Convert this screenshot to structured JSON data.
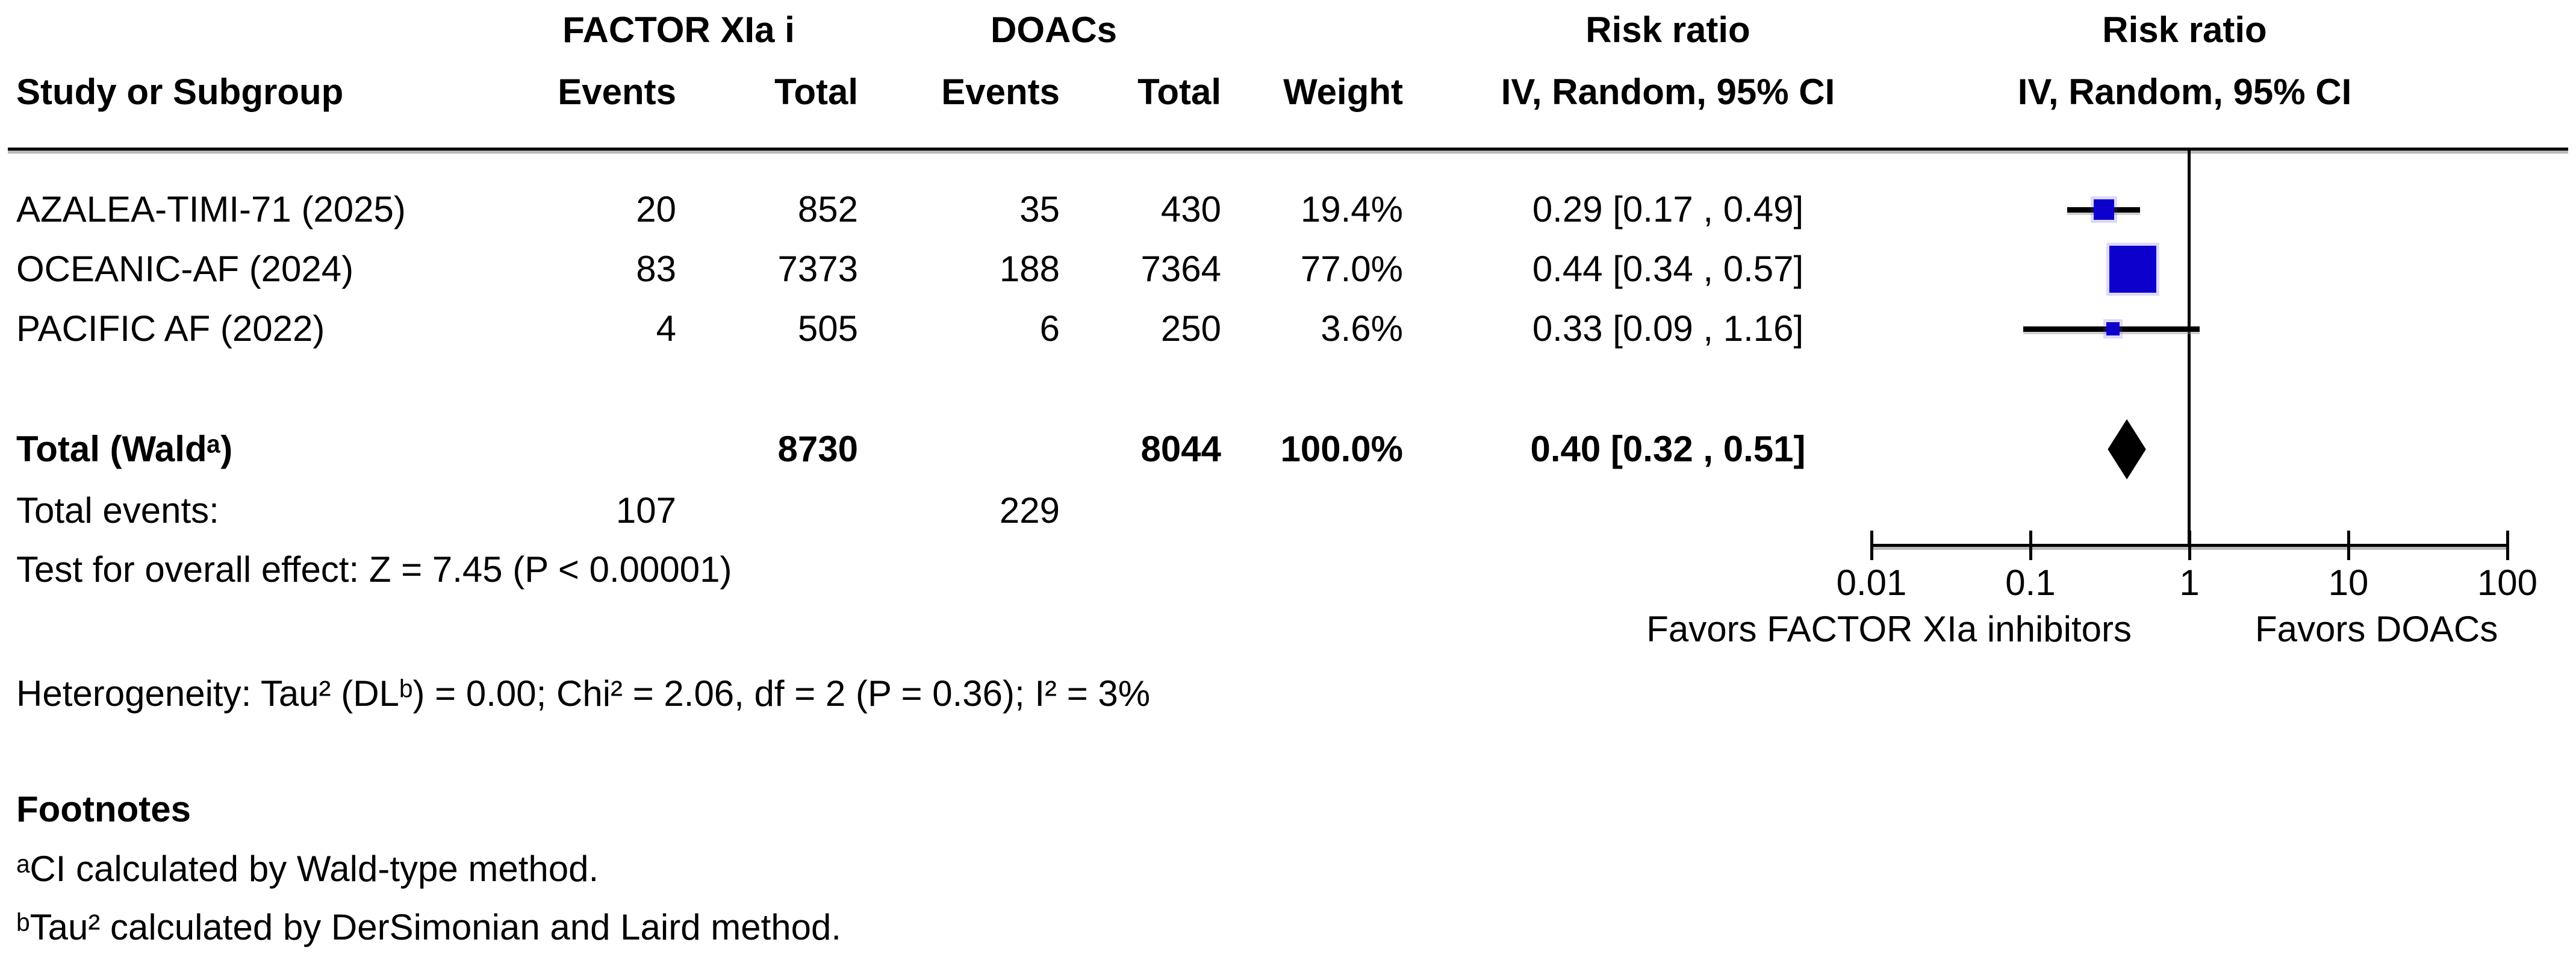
{
  "table": {
    "group_headers": {
      "experimental": "FACTOR XIa i",
      "control": "DOACs",
      "risk_ratio_text_col": "Risk ratio",
      "risk_ratio_plot_col": "Risk ratio"
    },
    "column_headers": {
      "study": "Study or Subgroup",
      "exp_events": "Events",
      "exp_total": "Total",
      "ctl_events": "Events",
      "ctl_total": "Total",
      "weight": "Weight",
      "ci_text_col": "IV, Random, 95% CI",
      "ci_plot_col": "IV, Random, 95% CI"
    },
    "rows": [
      {
        "study": "AZALEA-TIMI-71 (2025)",
        "exp_events": "20",
        "exp_total": "852",
        "ctl_events": "35",
        "ctl_total": "430",
        "weight": "19.4%",
        "estimate": "0.29 [0.17 , 0.49]"
      },
      {
        "study": "OCEANIC-AF (2024)",
        "exp_events": "83",
        "exp_total": "7373",
        "ctl_events": "188",
        "ctl_total": "7364",
        "weight": "77.0%",
        "estimate": "0.44 [0.34 , 0.57]"
      },
      {
        "study": "PACIFIC AF (2022)",
        "exp_events": "4",
        "exp_total": "505",
        "ctl_events": "6",
        "ctl_total": "250",
        "weight": "3.6%",
        "estimate": "0.33 [0.09 , 1.16]"
      }
    ],
    "total_row": {
      "label": "Total (Waldᵃ)",
      "exp_total": "8730",
      "ctl_total": "8044",
      "weight": "100.0%",
      "estimate": "0.40 [0.32 , 0.51]"
    },
    "total_events_row": {
      "label": "Total events:",
      "exp_events": "107",
      "ctl_events": "229"
    },
    "overall_effect": "Test for overall effect: Z = 7.45 (P < 0.00001)",
    "heterogeneity": "Heterogeneity: Tau² (DLᵇ) = 0.00; Chi² = 2.06, df = 2 (P = 0.36); I² = 3%"
  },
  "footnotes": {
    "header": "Footnotes",
    "a": "ᵃCI calculated by Wald-type method.",
    "b": "ᵇTau² calculated by DerSimonian and Laird method."
  },
  "plot": {
    "favors_left": "Favors FACTOR XIa inhibitors",
    "favors_right": "Favors DOACs",
    "marker_color": "#0d00cc",
    "diamond_color": "#000000"
  },
  "chart_data": {
    "type": "scatter",
    "subtype": "forest-plot",
    "title": "Risk ratio, IV, Random, 95% CI — FACTOR XIa inhibitors vs DOACs",
    "x_scale": "log10",
    "axis": {
      "ticks": [
        0.01,
        0.1,
        1,
        10,
        100
      ],
      "tick_labels": [
        "0.01",
        "0.1",
        "1",
        "10",
        "100"
      ],
      "xlim": [
        0.01,
        100
      ],
      "null_line": 1
    },
    "studies": [
      {
        "name": "AZALEA-TIMI-71 (2025)",
        "rr": 0.29,
        "ci_low": 0.17,
        "ci_high": 0.49,
        "weight_pct": 19.4,
        "marker_px": 34
      },
      {
        "name": "OCEANIC-AF (2024)",
        "rr": 0.44,
        "ci_low": 0.34,
        "ci_high": 0.57,
        "weight_pct": 77.0,
        "marker_px": 78
      },
      {
        "name": "PACIFIC AF (2022)",
        "rr": 0.33,
        "ci_low": 0.09,
        "ci_high": 1.16,
        "weight_pct": 3.6,
        "marker_px": 22
      }
    ],
    "total": {
      "rr": 0.4,
      "ci_low": 0.32,
      "ci_high": 0.51,
      "weight_pct": 100.0
    },
    "statistics": {
      "z": 7.45,
      "p_overall": "< 0.00001",
      "tau2": 0.0,
      "chi2": 2.06,
      "df": 2,
      "p_het": 0.36,
      "i2_pct": 3
    }
  }
}
